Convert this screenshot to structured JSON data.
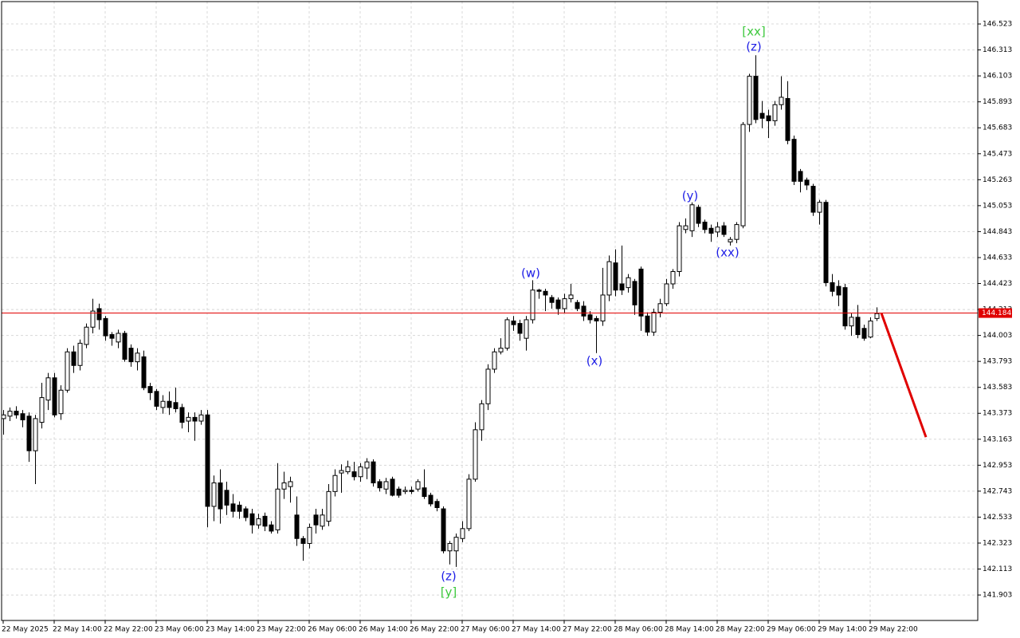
{
  "chart_data": {
    "type": "candlestick",
    "open": [
      143.33,
      143.35,
      143.39,
      143.37,
      143.35,
      143.07,
      143.3,
      143.48,
      143.66,
      143.37,
      143.56,
      143.87,
      143.76,
      143.93,
      144.07,
      144.22,
      144.14,
      144.01,
      143.95,
      144.02,
      143.9,
      143.79,
      143.83,
      143.59,
      143.55,
      143.42,
      143.47,
      143.46,
      143.42,
      143.31,
      143.34,
      143.31,
      143.36,
      142.62,
      142.81,
      142.75,
      142.64,
      142.63,
      142.6,
      142.56,
      142.47,
      142.54,
      142.47,
      142.43,
      142.76,
      142.78,
      142.55,
      142.36,
      142.32,
      142.55,
      142.46,
      142.5,
      142.74,
      142.89,
      142.9,
      142.9,
      142.86,
      142.93,
      142.98,
      142.82,
      142.76,
      142.84,
      142.76,
      142.74,
      142.75,
      142.76,
      142.77,
      142.71,
      142.66,
      142.6,
      142.26,
      142.26,
      142.36,
      142.44,
      142.84,
      143.24,
      143.45,
      143.73,
      143.87,
      143.9,
      144.12,
      144.1,
      143.98,
      144.13,
      144.37,
      144.36,
      144.31,
      144.29,
      144.22,
      144.3,
      144.27,
      144.24,
      144.17,
      144.14,
      144.12,
      144.33,
      144.59,
      144.42,
      144.39,
      144.44,
      144.54,
      144.16,
      144.03,
      144.19,
      144.26,
      144.42,
      144.52,
      144.86,
      144.85,
      145.04,
      144.92,
      144.87,
      144.84,
      144.89,
      144.76,
      144.78,
      144.89,
      145.71,
      146.1,
      145.8,
      145.78,
      145.74,
      145.87,
      145.92,
      145.59,
      145.33,
      145.26,
      145.21,
      145.0,
      145.08,
      144.43,
      144.4,
      144.39,
      144.08,
      144.15,
      144.06,
      143.99,
      144.14
    ],
    "high": [
      143.4,
      143.42,
      143.43,
      143.4,
      143.38,
      143.36,
      143.62,
      143.7,
      143.7,
      143.6,
      143.9,
      143.92,
      143.97,
      144.1,
      144.3,
      144.26,
      144.16,
      144.03,
      144.05,
      144.04,
      143.93,
      143.9,
      143.88,
      143.62,
      143.57,
      143.52,
      143.55,
      143.58,
      143.45,
      143.38,
      143.38,
      143.4,
      143.4,
      142.87,
      142.92,
      142.82,
      142.72,
      142.66,
      142.62,
      142.6,
      142.56,
      142.57,
      142.5,
      142.97,
      142.9,
      142.86,
      142.7,
      142.38,
      142.48,
      142.6,
      142.6,
      142.8,
      142.92,
      142.96,
      142.99,
      142.98,
      142.97,
      143.01,
      143.0,
      142.84,
      142.85,
      142.86,
      142.78,
      142.78,
      142.78,
      142.84,
      142.92,
      142.73,
      142.68,
      142.62,
      142.34,
      142.4,
      142.5,
      142.88,
      143.3,
      143.48,
      143.77,
      143.9,
      143.98,
      144.15,
      144.16,
      144.13,
      144.16,
      144.45,
      144.38,
      144.38,
      144.33,
      144.31,
      144.34,
      144.42,
      144.29,
      144.28,
      144.2,
      144.16,
      144.55,
      144.65,
      144.7,
      144.73,
      144.5,
      144.46,
      144.56,
      144.19,
      144.22,
      144.3,
      144.46,
      144.54,
      144.92,
      144.95,
      145.08,
      145.06,
      144.94,
      144.9,
      144.92,
      144.92,
      144.8,
      144.92,
      145.73,
      146.12,
      146.27,
      145.9,
      145.83,
      145.9,
      146.1,
      146.06,
      145.62,
      145.35,
      145.28,
      145.23,
      145.1,
      145.1,
      144.5,
      144.45,
      144.42,
      144.18,
      144.25,
      144.09,
      144.15,
      144.23
    ],
    "low": [
      143.2,
      143.31,
      143.33,
      143.26,
      142.98,
      142.8,
      143.25,
      143.4,
      143.34,
      143.32,
      143.54,
      143.7,
      143.72,
      143.9,
      144.02,
      144.05,
      143.96,
      143.92,
      143.9,
      143.79,
      143.75,
      143.72,
      143.56,
      143.48,
      143.4,
      143.37,
      143.36,
      143.38,
      143.25,
      143.22,
      143.15,
      143.28,
      142.45,
      142.5,
      142.48,
      142.55,
      142.53,
      142.52,
      142.5,
      142.4,
      142.44,
      142.42,
      142.4,
      142.4,
      142.68,
      142.65,
      142.3,
      142.18,
      142.28,
      142.4,
      142.43,
      142.46,
      142.7,
      142.73,
      142.88,
      142.83,
      142.82,
      142.84,
      142.78,
      142.74,
      142.72,
      142.7,
      142.69,
      142.72,
      142.72,
      142.74,
      142.68,
      142.62,
      142.58,
      142.24,
      142.15,
      142.13,
      142.33,
      142.42,
      142.82,
      143.15,
      143.4,
      143.7,
      143.85,
      143.88,
      144.04,
      143.96,
      143.88,
      144.1,
      144.3,
      144.2,
      144.22,
      144.17,
      144.18,
      144.27,
      144.2,
      144.12,
      144.1,
      143.86,
      144.08,
      144.28,
      144.32,
      144.33,
      144.35,
      144.17,
      144.04,
      144.0,
      144.0,
      144.15,
      144.24,
      144.38,
      144.48,
      144.83,
      144.8,
      144.88,
      144.83,
      144.76,
      144.8,
      144.8,
      144.73,
      144.75,
      144.87,
      145.65,
      145.72,
      145.68,
      145.6,
      145.7,
      145.83,
      145.55,
      145.22,
      145.16,
      145.18,
      144.97,
      144.9,
      144.4,
      144.32,
      144.24,
      144.05,
      144.0,
      143.98,
      143.96,
      143.98,
      144.12
    ],
    "close": [
      143.36,
      143.39,
      143.36,
      143.32,
      143.07,
      143.33,
      143.5,
      143.66,
      143.36,
      143.56,
      143.87,
      143.76,
      143.94,
      144.07,
      144.2,
      144.13,
      144.0,
      143.98,
      144.02,
      143.81,
      143.79,
      143.86,
      143.58,
      143.54,
      143.43,
      143.47,
      143.42,
      143.41,
      143.3,
      143.34,
      143.31,
      143.36,
      142.62,
      142.81,
      142.6,
      142.63,
      142.58,
      142.58,
      142.53,
      142.47,
      142.52,
      142.46,
      142.42,
      142.76,
      142.81,
      142.82,
      142.36,
      142.32,
      142.45,
      142.47,
      142.55,
      142.74,
      142.87,
      142.91,
      142.94,
      142.86,
      142.94,
      142.98,
      142.81,
      142.77,
      142.82,
      142.71,
      142.71,
      142.75,
      142.74,
      142.82,
      142.7,
      142.64,
      142.61,
      142.26,
      142.32,
      142.37,
      142.44,
      142.84,
      143.24,
      143.45,
      143.73,
      143.87,
      143.9,
      144.13,
      144.09,
      144.02,
      144.13,
      144.37,
      144.36,
      144.33,
      144.27,
      144.22,
      144.3,
      144.33,
      144.22,
      144.16,
      144.13,
      144.12,
      144.33,
      144.6,
      144.37,
      144.37,
      144.47,
      144.25,
      144.16,
      144.03,
      144.19,
      144.26,
      144.42,
      144.52,
      144.89,
      144.89,
      145.06,
      144.91,
      144.86,
      144.83,
      144.88,
      144.82,
      144.78,
      144.9,
      145.71,
      146.1,
      145.75,
      145.76,
      145.74,
      145.87,
      145.93,
      145.58,
      145.25,
      145.25,
      145.22,
      145.0,
      145.08,
      144.43,
      144.36,
      144.33,
      144.08,
      144.15,
      144.01,
      143.98,
      144.12,
      144.18
    ],
    "up_color": "#ffffff",
    "down_color": "#000000",
    "wick_color": "#000000",
    "xlim": [
      -0.25,
      152.875
    ],
    "xticks": [
      {
        "value": 0,
        "label": "22 May 2025"
      },
      {
        "value": 8,
        "label": "22 May 14:00"
      },
      {
        "value": 16,
        "label": "22 May 22:00"
      },
      {
        "value": 24,
        "label": "23 May 06:00"
      },
      {
        "value": 32,
        "label": "23 May 14:00"
      },
      {
        "value": 40,
        "label": "23 May 22:00"
      },
      {
        "value": 48,
        "label": "26 May 06:00"
      },
      {
        "value": 56,
        "label": "26 May 14:00"
      },
      {
        "value": 64,
        "label": "26 May 22:00"
      },
      {
        "value": 72,
        "label": "27 May 06:00"
      },
      {
        "value": 80,
        "label": "27 May 14:00"
      },
      {
        "value": 88,
        "label": "27 May 22:00"
      },
      {
        "value": 96,
        "label": "28 May 06:00"
      },
      {
        "value": 104,
        "label": "28 May 14:00"
      },
      {
        "value": 112,
        "label": "28 May 22:00"
      },
      {
        "value": 120,
        "label": "29 May 06:00"
      },
      {
        "value": 128,
        "label": "29 May 14:00"
      },
      {
        "value": 136,
        "label": "29 May 22:00"
      }
    ],
    "ylim": [
      141.697,
      146.704
    ],
    "yticks": [
      146.523,
      146.313,
      146.103,
      145.893,
      145.683,
      145.473,
      145.263,
      145.053,
      144.843,
      144.633,
      144.423,
      144.213,
      144.003,
      143.793,
      143.583,
      143.373,
      143.163,
      142.953,
      142.743,
      142.533,
      142.323,
      142.113,
      141.903
    ],
    "grid": true,
    "current_price": 144.184,
    "current_price_color": "#e00000",
    "forecast": {
      "x": [
        137.75,
        144.75
      ],
      "values": [
        144.184,
        143.18
      ],
      "color": "#e00000"
    },
    "annotations": [
      {
        "text": "(w)",
        "color": "#1e1ee6"
      },
      {
        "text": "(x)",
        "color": "#1e1ee6"
      },
      {
        "text": "(y)",
        "color": "#1e1ee6"
      },
      {
        "text": "(xx)",
        "color": "#1e1ee6"
      },
      {
        "text": "(z)",
        "color": "#1e1ee6"
      },
      {
        "text": "[xx]",
        "color": "#3cc83c"
      },
      {
        "text": "(z)",
        "color": "#1e1ee6"
      },
      {
        "text": "[y]",
        "color": "#3cc83c"
      }
    ]
  }
}
